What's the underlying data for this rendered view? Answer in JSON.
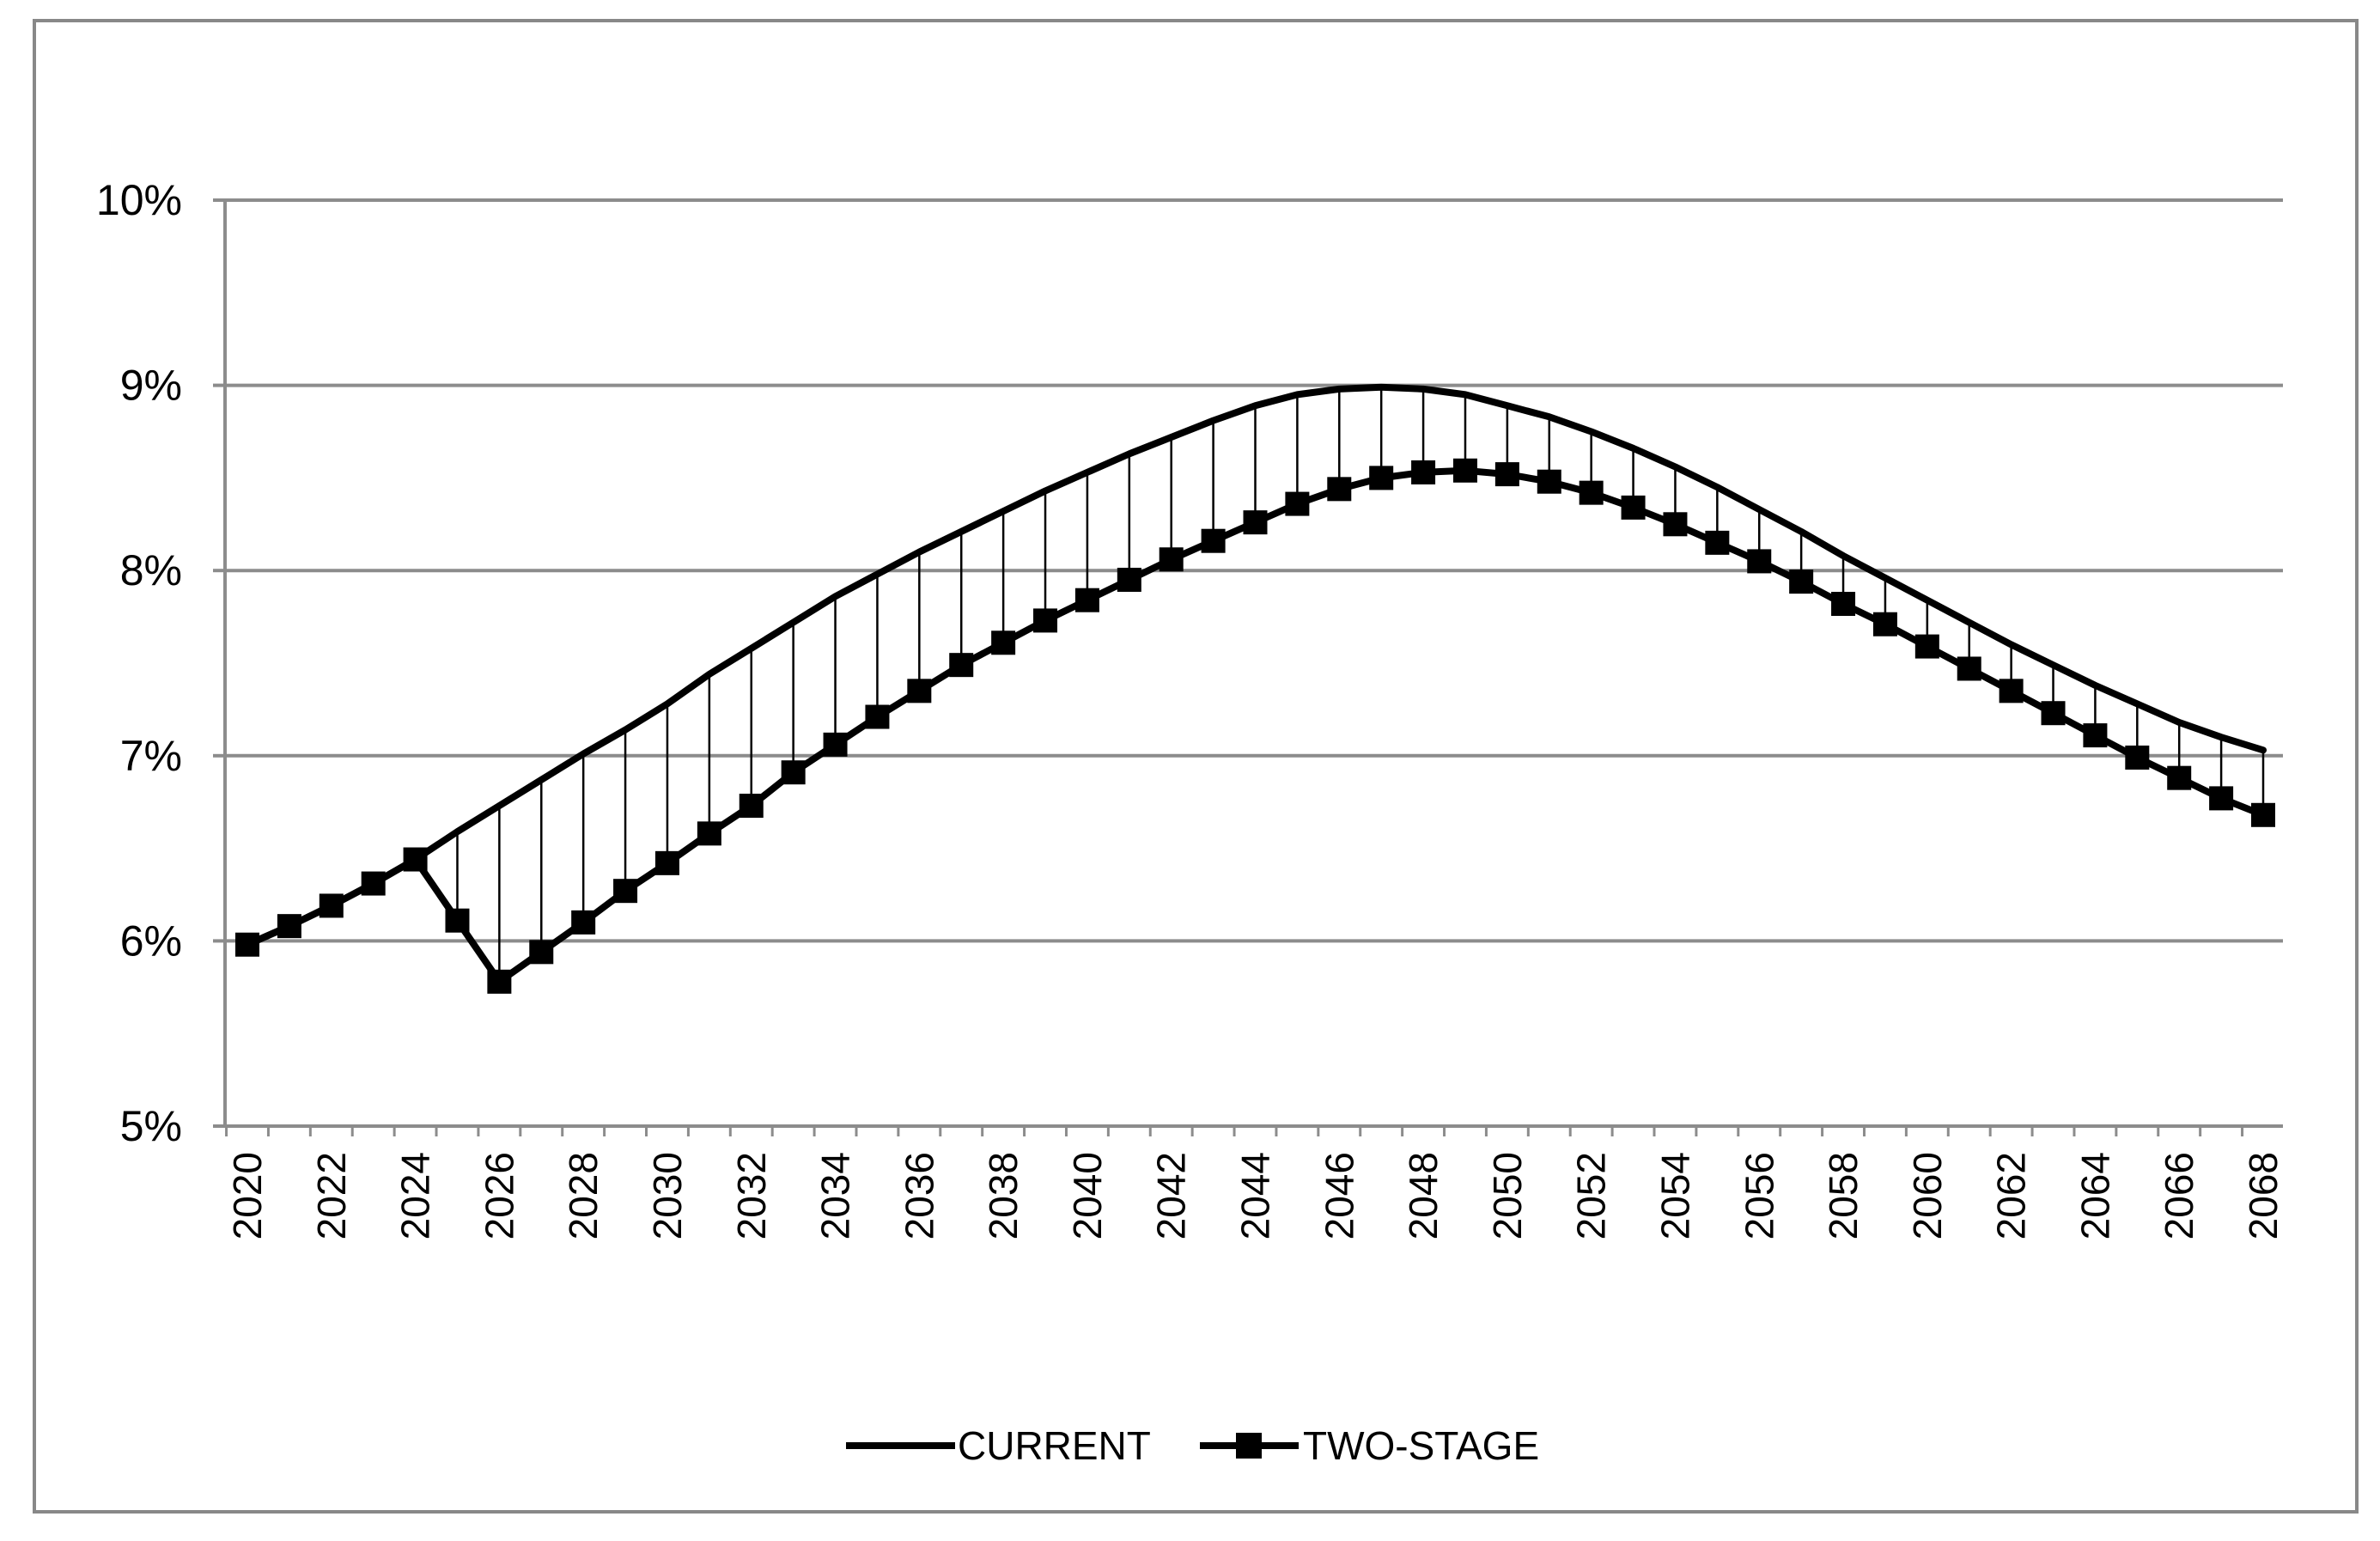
{
  "chart_data": {
    "type": "line",
    "title": "",
    "xlabel": "",
    "ylabel": "",
    "x": [
      2020,
      2021,
      2022,
      2023,
      2024,
      2025,
      2026,
      2027,
      2028,
      2029,
      2030,
      2031,
      2032,
      2033,
      2034,
      2035,
      2036,
      2037,
      2038,
      2039,
      2040,
      2041,
      2042,
      2043,
      2044,
      2045,
      2046,
      2047,
      2048,
      2049,
      2050,
      2051,
      2052,
      2053,
      2054,
      2055,
      2056,
      2057,
      2058,
      2059,
      2060,
      2061,
      2062,
      2063,
      2064,
      2065,
      2066,
      2067,
      2068
    ],
    "x_tick_labels": [
      "2020",
      "2022",
      "2024",
      "2026",
      "2028",
      "2030",
      "2032",
      "2034",
      "2036",
      "2038",
      "2040",
      "2042",
      "2044",
      "2046",
      "2048",
      "2050",
      "2052",
      "2054",
      "2056",
      "2058",
      "2060",
      "2062",
      "2064",
      "2066",
      "2068"
    ],
    "ylim": [
      5,
      10
    ],
    "y_ticks": [
      5,
      6,
      7,
      8,
      9,
      10
    ],
    "y_tick_labels": [
      "5%",
      "6%",
      "7%",
      "8%",
      "9%",
      "10%"
    ],
    "grid": "horizontal",
    "legend_position": "bottom-center",
    "drop_lines": true,
    "series": [
      {
        "name": "CURRENT",
        "marker": "none",
        "color": "#000000",
        "values": [
          5.98,
          6.08,
          6.19,
          6.31,
          6.44,
          6.59,
          6.73,
          6.87,
          7.01,
          7.14,
          7.28,
          7.44,
          7.58,
          7.72,
          7.86,
          7.98,
          8.1,
          8.21,
          8.32,
          8.43,
          8.53,
          8.63,
          8.72,
          8.81,
          8.89,
          8.95,
          8.98,
          8.99,
          8.98,
          8.95,
          8.89,
          8.83,
          8.75,
          8.66,
          8.56,
          8.45,
          8.33,
          8.21,
          8.08,
          7.96,
          7.84,
          7.72,
          7.6,
          7.49,
          7.38,
          7.28,
          7.18,
          7.1,
          7.03
        ]
      },
      {
        "name": "TWO-STAGE",
        "marker": "square",
        "color": "#000000",
        "values": [
          5.98,
          6.08,
          6.19,
          6.31,
          6.44,
          6.11,
          5.78,
          5.94,
          6.1,
          6.27,
          6.42,
          6.58,
          6.73,
          6.91,
          7.06,
          7.21,
          7.35,
          7.49,
          7.61,
          7.73,
          7.84,
          7.95,
          8.06,
          8.16,
          8.26,
          8.36,
          8.44,
          8.5,
          8.53,
          8.54,
          8.52,
          8.48,
          8.42,
          8.34,
          8.25,
          8.15,
          8.05,
          7.94,
          7.82,
          7.71,
          7.59,
          7.47,
          7.35,
          7.23,
          7.11,
          6.99,
          6.88,
          6.77,
          6.68
        ]
      }
    ]
  }
}
